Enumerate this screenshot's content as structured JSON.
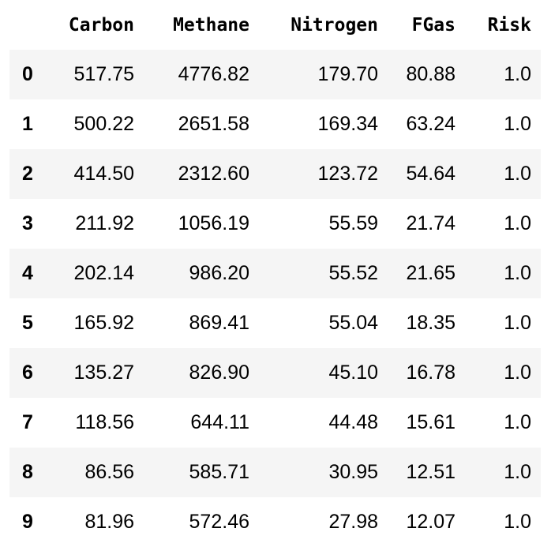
{
  "table": {
    "columns": [
      "Carbon",
      "Methane",
      "Nitrogen",
      "FGas",
      "Risk"
    ],
    "rows": [
      {
        "index": "0",
        "values": [
          "517.75",
          "4776.82",
          "179.70",
          "80.88",
          "1.0"
        ]
      },
      {
        "index": "1",
        "values": [
          "500.22",
          "2651.58",
          "169.34",
          "63.24",
          "1.0"
        ]
      },
      {
        "index": "2",
        "values": [
          "414.50",
          "2312.60",
          "123.72",
          "54.64",
          "1.0"
        ]
      },
      {
        "index": "3",
        "values": [
          "211.92",
          "1056.19",
          "55.59",
          "21.74",
          "1.0"
        ]
      },
      {
        "index": "4",
        "values": [
          "202.14",
          "986.20",
          "55.52",
          "21.65",
          "1.0"
        ]
      },
      {
        "index": "5",
        "values": [
          "165.92",
          "869.41",
          "55.04",
          "18.35",
          "1.0"
        ]
      },
      {
        "index": "6",
        "values": [
          "135.27",
          "826.90",
          "45.10",
          "16.78",
          "1.0"
        ]
      },
      {
        "index": "7",
        "values": [
          "118.56",
          "644.11",
          "44.48",
          "15.61",
          "1.0"
        ]
      },
      {
        "index": "8",
        "values": [
          "86.56",
          "585.71",
          "30.95",
          "12.51",
          "1.0"
        ]
      },
      {
        "index": "9",
        "values": [
          "81.96",
          "572.46",
          "27.98",
          "12.07",
          "1.0"
        ]
      }
    ]
  },
  "colors": {
    "stripe": "#f5f5f5",
    "text": "#000000",
    "background": "#ffffff"
  }
}
